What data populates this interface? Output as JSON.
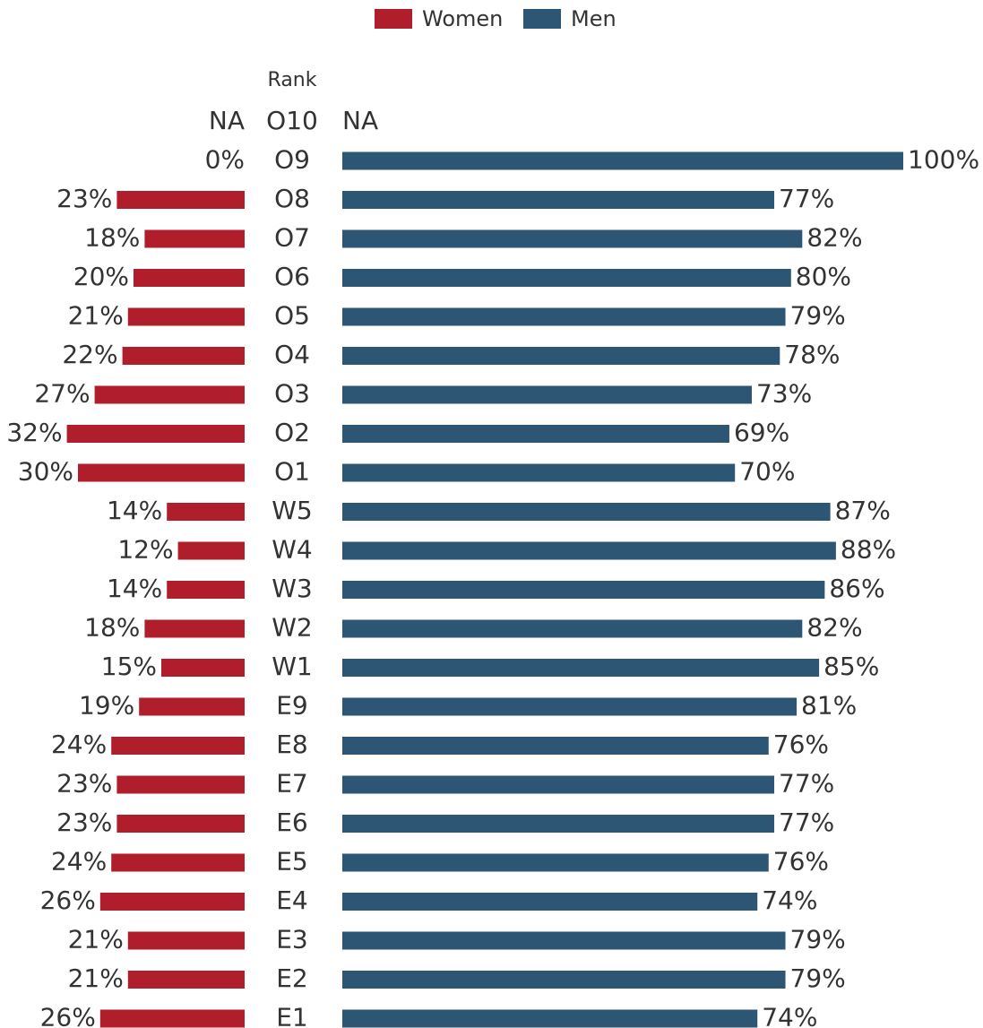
{
  "chart_data": {
    "type": "bar",
    "orientation": "horizontal-butterfly",
    "category_header": "Rank",
    "categories": [
      "O10",
      "O9",
      "O8",
      "O7",
      "O6",
      "O5",
      "O4",
      "O3",
      "O2",
      "O1",
      "W5",
      "W4",
      "W3",
      "W2",
      "W1",
      "E9",
      "E8",
      "E7",
      "E6",
      "E5",
      "E4",
      "E3",
      "E2",
      "E1"
    ],
    "series": [
      {
        "name": "Women",
        "color": "#b01e2b",
        "side": "left",
        "values": [
          null,
          0,
          23,
          18,
          20,
          21,
          22,
          27,
          32,
          30,
          14,
          12,
          14,
          18,
          15,
          19,
          24,
          23,
          23,
          24,
          26,
          21,
          21,
          26
        ],
        "labels": [
          "NA",
          "0%",
          "23%",
          "18%",
          "20%",
          "21%",
          "22%",
          "27%",
          "32%",
          "30%",
          "14%",
          "12%",
          "14%",
          "18%",
          "15%",
          "19%",
          "24%",
          "23%",
          "23%",
          "24%",
          "26%",
          "21%",
          "21%",
          "26%"
        ]
      },
      {
        "name": "Men",
        "color": "#2d5674",
        "side": "right",
        "values": [
          null,
          100,
          77,
          82,
          80,
          79,
          78,
          73,
          69,
          70,
          87,
          88,
          86,
          82,
          85,
          81,
          76,
          77,
          77,
          76,
          74,
          79,
          79,
          74
        ],
        "labels": [
          "NA",
          "100%",
          "77%",
          "82%",
          "80%",
          "79%",
          "78%",
          "73%",
          "69%",
          "70%",
          "87%",
          "88%",
          "86%",
          "82%",
          "85%",
          "81%",
          "76%",
          "77%",
          "77%",
          "76%",
          "74%",
          "79%",
          "79%",
          "74%"
        ]
      }
    ],
    "legend_position": "top-center",
    "grid": false,
    "axes_visible": false
  }
}
